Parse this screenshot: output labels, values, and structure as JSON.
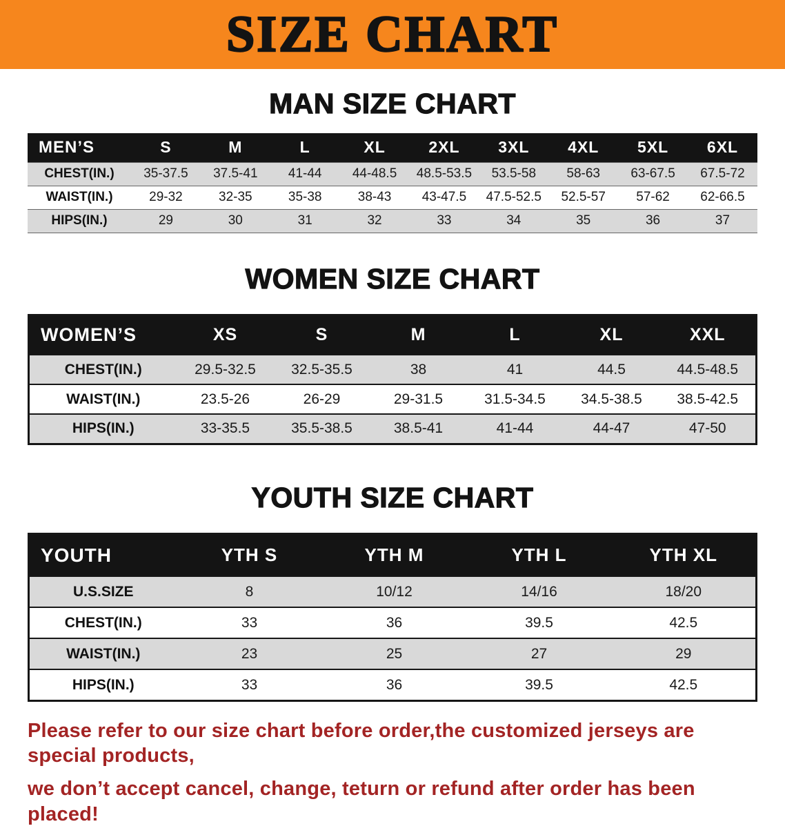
{
  "banner": {
    "title": "SIZE CHART"
  },
  "men": {
    "heading": "MAN SIZE CHART",
    "header": [
      "MEN’S",
      "S",
      "M",
      "L",
      "XL",
      "2XL",
      "3XL",
      "4XL",
      "5XL",
      "6XL"
    ],
    "rows": [
      [
        "CHEST(IN.)",
        "35-37.5",
        "37.5-41",
        "41-44",
        "44-48.5",
        "48.5-53.5",
        "53.5-58",
        "58-63",
        "63-67.5",
        "67.5-72"
      ],
      [
        "WAIST(IN.)",
        "29-32",
        "32-35",
        "35-38",
        "38-43",
        "43-47.5",
        "47.5-52.5",
        "52.5-57",
        "57-62",
        "62-66.5"
      ],
      [
        "HIPS(IN.)",
        "29",
        "30",
        "31",
        "32",
        "33",
        "34",
        "35",
        "36",
        "37"
      ]
    ]
  },
  "women": {
    "heading": "WOMEN SIZE CHART",
    "header": [
      "WOMEN’S",
      "XS",
      "S",
      "M",
      "L",
      "XL",
      "XXL"
    ],
    "rows": [
      [
        "CHEST(IN.)",
        "29.5-32.5",
        "32.5-35.5",
        "38",
        "41",
        "44.5",
        "44.5-48.5"
      ],
      [
        "WAIST(IN.)",
        "23.5-26",
        "26-29",
        "29-31.5",
        "31.5-34.5",
        "34.5-38.5",
        "38.5-42.5"
      ],
      [
        "HIPS(IN.)",
        "33-35.5",
        "35.5-38.5",
        "38.5-41",
        "41-44",
        "44-47",
        "47-50"
      ]
    ]
  },
  "youth": {
    "heading": "YOUTH SIZE CHART",
    "header": [
      "YOUTH",
      "YTH S",
      "YTH M",
      "YTH L",
      "YTH XL"
    ],
    "rows": [
      [
        "U.S.SIZE",
        "8",
        "10/12",
        "14/16",
        "18/20"
      ],
      [
        "CHEST(IN.)",
        "33",
        "36",
        "39.5",
        "42.5"
      ],
      [
        "WAIST(IN.)",
        "23",
        "25",
        "27",
        "29"
      ],
      [
        "HIPS(IN.)",
        "33",
        "36",
        "39.5",
        "42.5"
      ]
    ]
  },
  "footnote": {
    "line1": "Please refer to our size chart before order,the customized jerseys are special products,",
    "line2": "we don’t accept cancel, change, teturn or refund after order has been placed!"
  },
  "colors": {
    "banner_bg": "#f6861d",
    "table_header_bg": "#141414",
    "row_alt_bg": "#d9d9d9",
    "footnote_text": "#a32424"
  }
}
